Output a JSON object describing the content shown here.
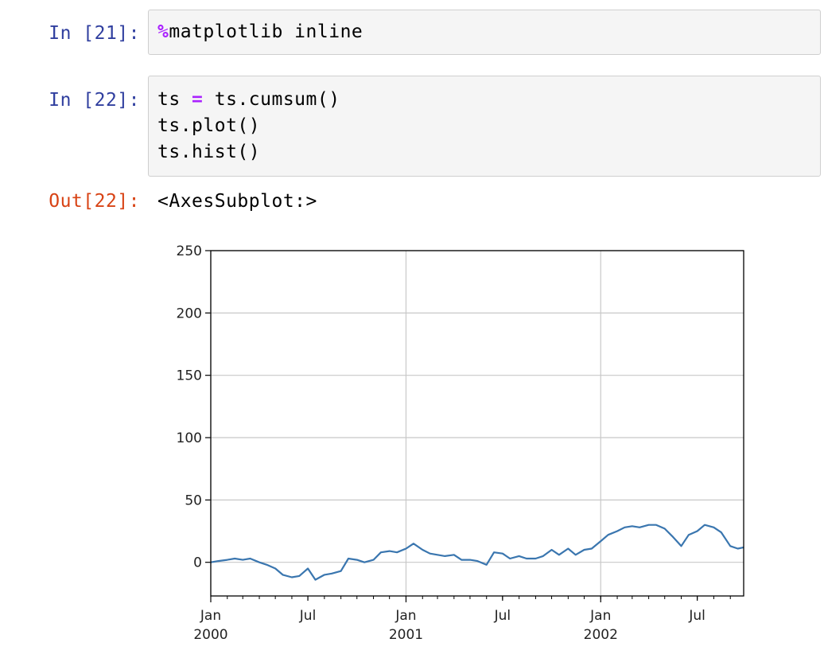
{
  "cells": [
    {
      "prompt": "In [21]:",
      "lines": [
        {
          "magic": "%",
          "rest": "matplotlib inline"
        }
      ]
    },
    {
      "prompt": "In [22]:",
      "lines": [
        {
          "pre": "ts ",
          "op": "=",
          "post": " ts.cumsum()"
        },
        {
          "text": "ts.plot()"
        },
        {
          "text": "ts.hist()"
        }
      ]
    }
  ],
  "output": {
    "prompt": "Out[22]:",
    "text": "<AxesSubplot:>"
  },
  "chart_data": {
    "type": "line",
    "title": "",
    "xlabel": "",
    "ylabel": "",
    "ylim": [
      -27,
      250
    ],
    "yticks": [
      0,
      50,
      100,
      150,
      200,
      250
    ],
    "xticks": [
      {
        "date": "2000-01-01",
        "line1": "Jan",
        "line2": "2000",
        "major": true
      },
      {
        "date": "2000-07-01",
        "line1": "Jul",
        "line2": "",
        "major": false
      },
      {
        "date": "2001-01-01",
        "line1": "Jan",
        "line2": "2001",
        "major": true
      },
      {
        "date": "2001-07-01",
        "line1": "Jul",
        "line2": "",
        "major": false
      },
      {
        "date": "2002-01-01",
        "line1": "Jan",
        "line2": "2002",
        "major": true
      },
      {
        "date": "2002-07-01",
        "line1": "Jul",
        "line2": "",
        "major": false
      }
    ],
    "xlim": [
      "2000-01-01",
      "2002-09-26"
    ],
    "grid": true,
    "line_color": "#3a76af",
    "series": [
      {
        "x": [
          "2000-01-01",
          "2000-01-15",
          "2000-02-01",
          "2000-02-15",
          "2000-03-01",
          "2000-03-15",
          "2000-04-01",
          "2000-04-15",
          "2000-05-01",
          "2000-05-15",
          "2000-06-01",
          "2000-06-15",
          "2000-07-01",
          "2000-07-15",
          "2000-08-01",
          "2000-08-15",
          "2000-09-01",
          "2000-09-15",
          "2000-10-01",
          "2000-10-15",
          "2000-11-01",
          "2000-11-15",
          "2000-12-01",
          "2000-12-15",
          "2001-01-01",
          "2001-01-15",
          "2001-02-01",
          "2001-02-15",
          "2001-03-01",
          "2001-03-15",
          "2001-04-01",
          "2001-04-15",
          "2001-05-01",
          "2001-05-15",
          "2001-06-01",
          "2001-06-15",
          "2001-07-01",
          "2001-07-15",
          "2001-08-01",
          "2001-08-15",
          "2001-09-01",
          "2001-09-15",
          "2001-10-01",
          "2001-10-15",
          "2001-11-01",
          "2001-11-15",
          "2001-12-01",
          "2001-12-15",
          "2002-01-01",
          "2002-01-15",
          "2002-02-01",
          "2002-02-15",
          "2002-03-01",
          "2002-03-15",
          "2002-04-01",
          "2002-04-15",
          "2002-05-01",
          "2002-05-15",
          "2002-06-01",
          "2002-06-15",
          "2002-07-01",
          "2002-07-15",
          "2002-08-01",
          "2002-08-15",
          "2002-09-01",
          "2002-09-15",
          "2002-09-26"
        ],
        "y": [
          0,
          1,
          2,
          3,
          2,
          3,
          0,
          -2,
          -5,
          -10,
          -12,
          -11,
          -5,
          -14,
          -10,
          -9,
          -7,
          3,
          2,
          0,
          2,
          8,
          9,
          8,
          11,
          15,
          10,
          7,
          6,
          5,
          6,
          2,
          2,
          1,
          -2,
          8,
          7,
          3,
          5,
          3,
          3,
          5,
          10,
          6,
          11,
          6,
          10,
          11,
          17,
          22,
          25,
          28,
          29,
          28,
          30,
          30,
          27,
          21,
          13,
          22,
          25,
          30,
          28,
          24,
          13,
          11,
          12
        ]
      }
    ]
  }
}
